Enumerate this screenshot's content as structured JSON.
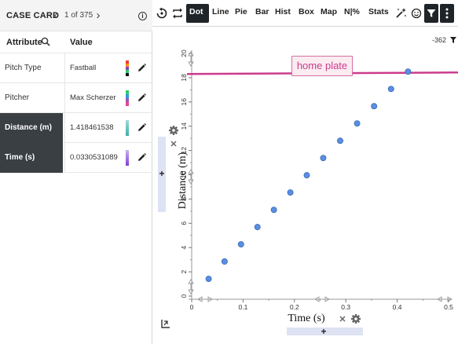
{
  "case_card": {
    "title": "CASE CARD",
    "prev": "‹",
    "next": "›",
    "count": "1 of 375",
    "columns": {
      "attribute": "Attribute",
      "value": "Value"
    },
    "rows": [
      {
        "attribute": "Pitch Type",
        "value": "Fastball",
        "colors": [
          "#e8412c",
          "#f28e1c",
          "#8e44ad",
          "#2ecc71",
          "#111111"
        ]
      },
      {
        "attribute": "Pitcher",
        "value": "Max Scherzer",
        "colors": [
          "#2ecc71",
          "#3498db",
          "#9b59b6",
          "#e84393"
        ]
      },
      {
        "attribute": "Distance (m)",
        "value": "1.418461538",
        "colors": [
          "#9fd8d2",
          "#3cb0a8"
        ]
      },
      {
        "attribute": "Time (s)",
        "value": "0.0330531089",
        "colors": [
          "#c8b3ef",
          "#7e3fd8"
        ]
      }
    ]
  },
  "toolbar": {
    "buttons": [
      "Dot",
      "Line",
      "Pie",
      "Bar",
      "Hist",
      "Box",
      "Map",
      "N|%",
      "Stats"
    ],
    "active": "Dot",
    "icons": [
      "reset-icon",
      "swap-icon",
      "magic-wand-icon",
      "smiley-icon",
      "filter-icon",
      "more-icon"
    ]
  },
  "legend": {
    "value": "-362"
  },
  "annotation": {
    "text": "home plate",
    "color": "#cc3b8c"
  },
  "chart_data": {
    "type": "scatter",
    "title": "",
    "xlabel": "Time (s)",
    "ylabel": "Distance (m)",
    "xlim": [
      0,
      0.5
    ],
    "ylim": [
      0,
      20
    ],
    "x_ticks": [
      "0",
      "0.1",
      "0.2",
      "0.3",
      "0.4",
      "0.5"
    ],
    "y_ticks": [
      "0",
      "2",
      "4",
      "6",
      "8",
      "10",
      "12",
      "14",
      "16",
      "18",
      "20"
    ],
    "point_color": "#5b8ee0",
    "reference_line": {
      "y": 18.3,
      "color": "#cc3b8c",
      "label": "home plate"
    },
    "grid": false,
    "points": [
      {
        "x": 0.033,
        "y": 1.42
      },
      {
        "x": 0.064,
        "y": 2.85
      },
      {
        "x": 0.096,
        "y": 4.27
      },
      {
        "x": 0.128,
        "y": 5.69
      },
      {
        "x": 0.16,
        "y": 7.11
      },
      {
        "x": 0.192,
        "y": 8.54
      },
      {
        "x": 0.224,
        "y": 9.96
      },
      {
        "x": 0.256,
        "y": 11.38
      },
      {
        "x": 0.289,
        "y": 12.8
      },
      {
        "x": 0.322,
        "y": 14.23
      },
      {
        "x": 0.355,
        "y": 15.65
      },
      {
        "x": 0.388,
        "y": 17.07
      },
      {
        "x": 0.421,
        "y": 18.5
      }
    ]
  }
}
